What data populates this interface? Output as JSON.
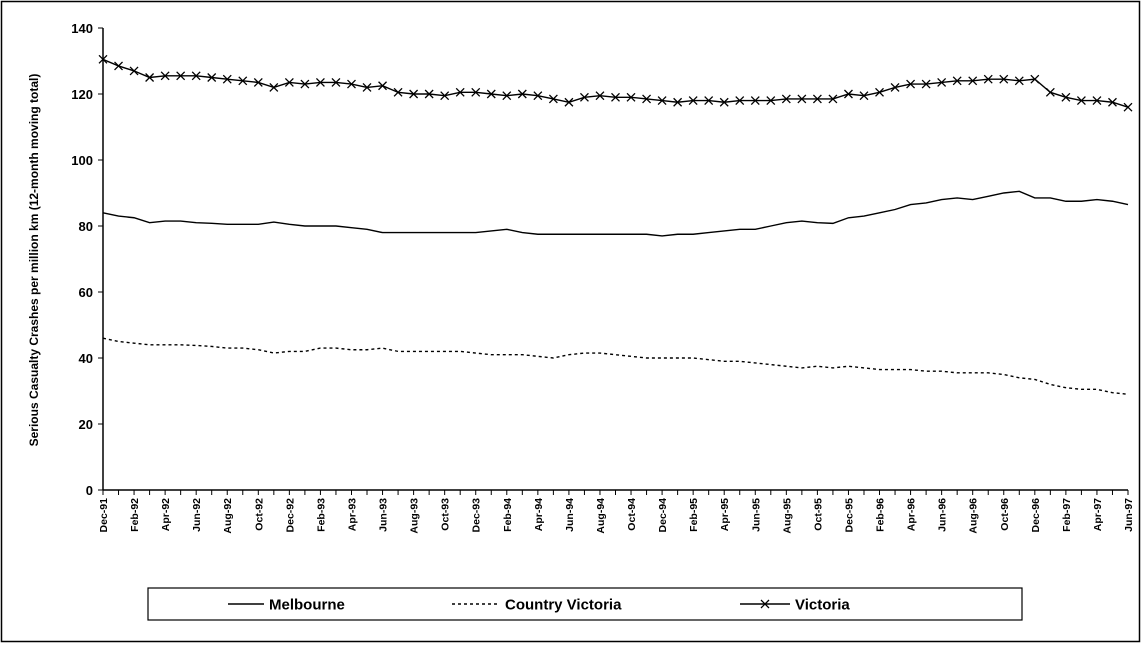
{
  "chart_data": {
    "type": "line",
    "y_label": "Serious Casualty Crashes per million km (12-month moving total)",
    "categories": [
      "Dec-91",
      null,
      "Feb-92",
      null,
      "Apr-92",
      null,
      "Jun-92",
      null,
      "Aug-92",
      null,
      "Oct-92",
      null,
      "Dec-92",
      null,
      "Feb-93",
      null,
      "Apr-93",
      null,
      "Jun-93",
      null,
      "Aug-93",
      null,
      "Oct-93",
      null,
      "Dec-93",
      null,
      "Feb-94",
      null,
      "Apr-94",
      null,
      "Jun-94",
      null,
      "Aug-94",
      null,
      "Oct-94",
      null,
      "Dec-94",
      null,
      "Feb-95",
      null,
      "Apr-95",
      null,
      "Jun-95",
      null,
      "Aug-95",
      null,
      "Oct-95",
      null,
      "Dec-95",
      null,
      "Feb-96",
      null,
      "Apr-96",
      null,
      "Jun-96",
      null,
      "Aug-96",
      null,
      "Oct-96",
      null,
      "Dec-96",
      null,
      "Feb-97",
      null,
      "Apr-97",
      null,
      "Jun-97"
    ],
    "series": [
      {
        "name": "Melbourne",
        "color": "#000000",
        "line_style": "solid",
        "values": [
          84,
          83,
          82.5,
          81,
          81.5,
          81.5,
          81,
          80.8,
          80.5,
          80.5,
          80.5,
          81.2,
          80.5,
          80,
          80,
          80,
          79.5,
          79,
          78,
          78,
          78,
          78,
          78,
          78,
          78,
          78.5,
          79,
          78,
          77.5,
          77.5,
          77.5,
          77.5,
          77.5,
          77.5,
          77.5,
          77.5,
          77,
          77.5,
          77.5,
          78,
          78.5,
          79,
          79,
          80,
          81,
          81.5,
          81,
          80.8,
          82.5,
          83,
          84,
          85,
          86.5,
          87,
          88,
          88.5,
          88,
          89,
          90,
          90.5,
          88.5,
          88.5,
          87.5,
          87.5,
          88,
          87.5,
          86.5
        ]
      },
      {
        "name": "Country Victoria",
        "color": "#000000",
        "line_style": "dotted",
        "values": [
          46,
          45,
          44.5,
          44,
          44,
          44,
          43.8,
          43.5,
          43,
          43,
          42.5,
          41.5,
          42,
          42,
          43,
          43,
          42.5,
          42.5,
          43,
          42,
          42,
          42,
          42,
          42,
          41.5,
          41,
          41,
          41,
          40.5,
          40,
          41,
          41.5,
          41.5,
          41,
          40.5,
          40,
          40,
          40,
          40,
          39.5,
          39,
          39,
          38.5,
          38,
          37.5,
          37,
          37.5,
          37,
          37.5,
          37,
          36.5,
          36.5,
          36.5,
          36,
          36,
          35.5,
          35.5,
          35.5,
          35,
          34,
          33.5,
          32,
          31,
          30.5,
          30.5,
          29.5,
          29
        ]
      },
      {
        "name": "Victoria",
        "color": "#000000",
        "line_style": "solid",
        "marker": "x",
        "values": [
          130.5,
          128.5,
          127,
          125,
          125.5,
          125.5,
          125.5,
          125,
          124.5,
          124,
          123.5,
          122,
          123.5,
          123,
          123.5,
          123.5,
          123,
          122,
          122.5,
          120.5,
          120,
          120,
          119.5,
          120.5,
          120.5,
          120,
          119.5,
          120,
          119.5,
          118.5,
          117.5,
          119,
          119.5,
          119,
          119,
          118.5,
          118,
          117.5,
          118,
          118,
          117.5,
          118,
          118,
          118,
          118.5,
          118.5,
          118.5,
          118.5,
          120,
          119.5,
          120.5,
          122,
          123,
          123,
          123.5,
          124,
          124,
          124.5,
          124.5,
          124,
          124.5,
          120.5,
          119,
          118,
          118,
          117.5,
          116
        ]
      }
    ],
    "ylim": [
      0,
      140
    ],
    "yticks": [
      0,
      20,
      40,
      60,
      80,
      100,
      120,
      140
    ],
    "grid": false,
    "legend": "bottom"
  }
}
